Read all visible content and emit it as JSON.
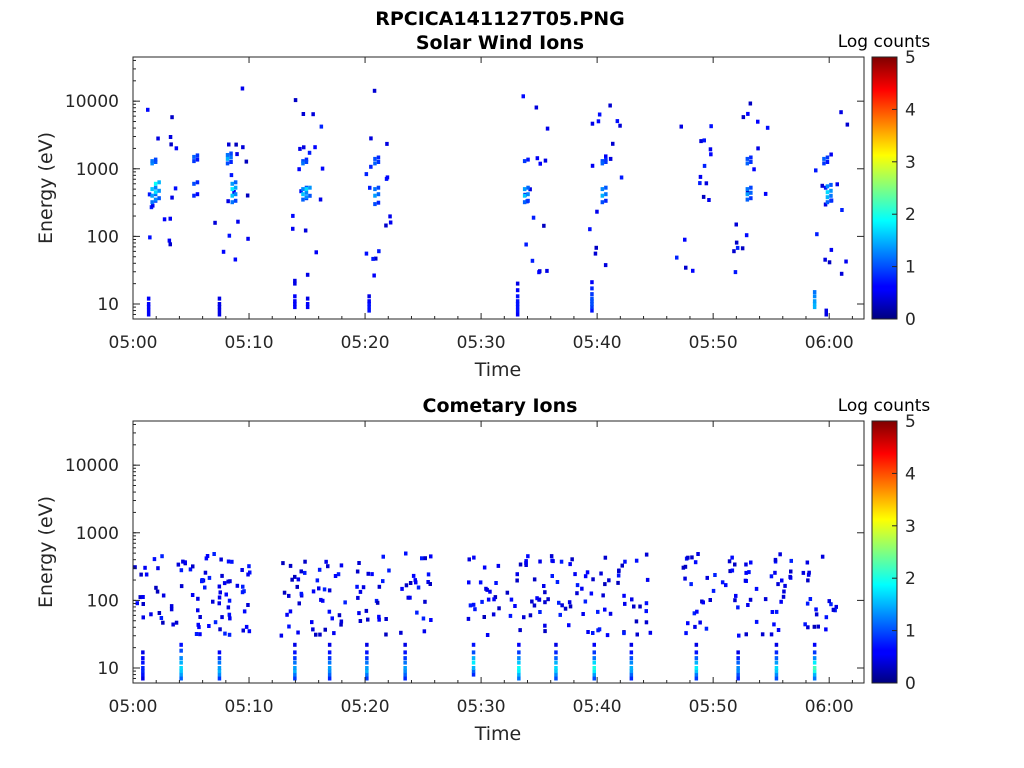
{
  "figure_title": "RPCICA141127T05.PNG",
  "colorbar": {
    "title": "Log counts",
    "ticks": [
      "0",
      "1",
      "2",
      "3",
      "4",
      "5"
    ],
    "range": [
      0,
      5
    ],
    "colormap": "jet"
  },
  "chart_data": [
    {
      "type": "heatmap",
      "title": "Solar Wind Ions",
      "xlabel": "Time",
      "ylabel": "Energy (eV)",
      "x_ticks": [
        "05:00",
        "05:10",
        "05:20",
        "05:30",
        "05:40",
        "05:50",
        "06:00"
      ],
      "y_ticks": [
        "10",
        "100",
        "1000",
        "10000"
      ],
      "y_scale": "log",
      "xlim_minutes": [
        0,
        63
      ],
      "ylim_eV": [
        6,
        45000
      ],
      "cell_minutes": 0.3,
      "bursts_minutes": [
        1.5,
        7.8,
        14.5,
        20.5,
        33.5,
        40,
        47.6,
        52.5,
        59.5
      ],
      "clusters": [
        {
          "t": 1.5,
          "E": [
            1200,
            1300,
            500,
            400,
            320
          ],
          "v": [
            1.3,
            1.2,
            1.6,
            1.4,
            1.2
          ]
        },
        {
          "t": 1.8,
          "E": [
            600,
            450,
            350
          ],
          "v": [
            1.9,
            1.7,
            1.3
          ]
        },
        {
          "t": 5.1,
          "E": [
            1500,
            1300,
            600,
            400
          ],
          "v": [
            1.1,
            0.9,
            1.0,
            0.8
          ]
        },
        {
          "t": 8.0,
          "E": [
            1600,
            1400,
            1200
          ],
          "v": [
            1.2,
            1.5,
            1.0
          ]
        },
        {
          "t": 8.4,
          "E": [
            600,
            500,
            400,
            320
          ],
          "v": [
            1.4,
            1.8,
            1.6,
            1.2
          ]
        },
        {
          "t": 14.5,
          "E": [
            1300,
            1200,
            500,
            420,
            350
          ],
          "v": [
            1.0,
            1.2,
            1.3,
            1.6,
            1.1
          ]
        },
        {
          "t": 14.8,
          "E": [
            500,
            380
          ],
          "v": [
            1.7,
            1.3
          ]
        },
        {
          "t": 20.7,
          "E": [
            1400,
            1200,
            500,
            400,
            300
          ],
          "v": [
            1.0,
            1.1,
            1.2,
            1.4,
            1.0
          ]
        },
        {
          "t": 33.6,
          "E": [
            1300,
            500,
            400,
            320
          ],
          "v": [
            0.9,
            1.4,
            1.6,
            1.1
          ]
        },
        {
          "t": 40.3,
          "E": [
            1300,
            1200,
            500,
            400,
            320
          ],
          "v": [
            1.0,
            1.1,
            1.3,
            1.5,
            1.0
          ]
        },
        {
          "t": 52.8,
          "E": [
            1400,
            1200,
            500,
            420,
            350
          ],
          "v": [
            1.0,
            1.1,
            1.2,
            1.4,
            1.1
          ]
        },
        {
          "t": 59.4,
          "E": [
            1400,
            1200
          ],
          "v": [
            1.1,
            0.9
          ]
        },
        {
          "t": 59.7,
          "E": [
            550,
            450,
            380,
            320
          ],
          "v": [
            1.3,
            1.7,
            1.5,
            1.1
          ]
        }
      ],
      "low_bars": [
        {
          "t": 1.2,
          "E": [
            7,
            8,
            9,
            10,
            12
          ],
          "v": [
            0.6,
            0.6,
            0.6,
            0.6,
            0.6
          ]
        },
        {
          "t": 7.3,
          "E": [
            7,
            8,
            9,
            10,
            12
          ],
          "v": [
            0.5,
            0.5,
            0.5,
            0.5,
            0.5
          ]
        },
        {
          "t": 13.8,
          "E": [
            9,
            10,
            11,
            13,
            20,
            22
          ],
          "v": [
            0.6,
            0.6,
            0.6,
            0.6,
            0.5,
            0.5
          ]
        },
        {
          "t": 14.9,
          "E": [
            9,
            10,
            12,
            27
          ],
          "v": [
            0.6,
            0.6,
            0.5,
            0.5
          ]
        },
        {
          "t": 20.2,
          "E": [
            8,
            9,
            10,
            11,
            13
          ],
          "v": [
            0.7,
            0.7,
            0.7,
            0.6,
            0.5
          ]
        },
        {
          "t": 33.0,
          "E": [
            7,
            8,
            9,
            10,
            11,
            13,
            16,
            20
          ],
          "v": [
            0.6,
            0.7,
            0.7,
            0.7,
            0.7,
            0.7,
            0.6,
            0.5
          ]
        },
        {
          "t": 39.4,
          "E": [
            8,
            9,
            10,
            11,
            12,
            14,
            17,
            21
          ],
          "v": [
            0.7,
            0.9,
            1.0,
            1.0,
            1.0,
            0.9,
            0.8,
            0.6
          ]
        },
        {
          "t": 58.6,
          "E": [
            9,
            10,
            11,
            13,
            15
          ],
          "v": [
            1.5,
            1.5,
            1.4,
            1.3,
            1.2
          ]
        },
        {
          "t": 59.6,
          "E": [
            7,
            8
          ],
          "v": [
            0.5,
            0.5
          ]
        }
      ]
    },
    {
      "type": "heatmap",
      "title": "Cometary Ions",
      "xlabel": "Time",
      "ylabel": "Energy (eV)",
      "x_ticks": [
        "05:00",
        "05:10",
        "05:20",
        "05:30",
        "05:40",
        "05:50",
        "06:00"
      ],
      "y_ticks": [
        "10",
        "100",
        "1000",
        "10000"
      ],
      "y_scale": "log",
      "xlim_minutes": [
        0,
        63
      ],
      "ylim_eV": [
        6,
        45000
      ],
      "cell_minutes": 0.3,
      "bursts_minutes": [
        0.5,
        4,
        6.3,
        8,
        13.5,
        16.5,
        20,
        23.5,
        29.5,
        33,
        36,
        39,
        42.5,
        48,
        51.5,
        55,
        58.5
      ],
      "low_bars": [
        {
          "t": 0.7,
          "E": [
            7,
            8,
            9,
            10,
            12,
            14,
            17
          ],
          "v": [
            0.5,
            0.7,
            0.8,
            0.8,
            0.7,
            0.6,
            0.5
          ]
        },
        {
          "t": 4.0,
          "E": [
            7,
            8,
            9,
            10,
            12,
            14,
            18,
            22
          ],
          "v": [
            1.1,
            1.4,
            1.6,
            1.7,
            1.5,
            1.3,
            1.0,
            0.7
          ]
        },
        {
          "t": 7.3,
          "E": [
            7,
            8,
            9,
            10,
            12,
            14,
            17
          ],
          "v": [
            0.9,
            1.3,
            1.5,
            1.4,
            1.2,
            0.9,
            0.6
          ]
        },
        {
          "t": 13.8,
          "E": [
            7,
            8,
            9,
            10,
            12,
            14,
            17,
            22
          ],
          "v": [
            0.9,
            1.2,
            1.5,
            1.4,
            1.2,
            0.9,
            0.7,
            0.5
          ]
        },
        {
          "t": 16.8,
          "E": [
            7,
            8,
            9,
            10,
            12,
            14,
            17,
            22
          ],
          "v": [
            0.8,
            1.1,
            1.3,
            1.4,
            1.2,
            0.9,
            0.7,
            0.5
          ]
        },
        {
          "t": 20.0,
          "E": [
            7,
            8,
            9,
            10,
            12,
            14,
            17,
            22
          ],
          "v": [
            0.9,
            1.2,
            1.5,
            1.4,
            1.2,
            0.9,
            0.7,
            0.5
          ]
        },
        {
          "t": 23.3,
          "E": [
            7,
            8,
            9,
            10,
            12,
            14,
            17,
            22
          ],
          "v": [
            0.8,
            1.1,
            1.3,
            1.4,
            1.2,
            0.9,
            0.7,
            0.5
          ]
        },
        {
          "t": 29.2,
          "E": [
            8,
            9,
            10,
            12,
            14,
            17,
            22
          ],
          "v": [
            0.8,
            1.1,
            1.5,
            1.8,
            1.5,
            1.0,
            0.7
          ]
        },
        {
          "t": 33.1,
          "E": [
            7,
            8,
            9,
            10,
            12,
            14,
            17,
            22
          ],
          "v": [
            1.2,
            1.5,
            1.8,
            1.9,
            1.6,
            1.3,
            0.9,
            0.6
          ]
        },
        {
          "t": 36.3,
          "E": [
            7,
            8,
            9,
            10,
            12,
            14,
            17,
            22
          ],
          "v": [
            1.0,
            1.3,
            1.6,
            1.7,
            1.5,
            1.1,
            0.8,
            0.5
          ]
        },
        {
          "t": 39.6,
          "E": [
            7,
            8,
            9,
            10,
            12,
            14,
            17,
            22
          ],
          "v": [
            1.0,
            1.4,
            1.8,
            2.0,
            1.7,
            1.2,
            0.9,
            0.6
          ]
        },
        {
          "t": 42.8,
          "E": [
            7,
            8,
            9,
            10,
            12,
            14,
            17,
            22
          ],
          "v": [
            0.8,
            1.1,
            1.4,
            1.5,
            1.3,
            1.0,
            0.7,
            0.5
          ]
        },
        {
          "t": 48.4,
          "E": [
            7,
            8,
            9,
            10,
            12,
            14,
            17,
            22
          ],
          "v": [
            0.9,
            1.2,
            1.6,
            1.8,
            1.5,
            1.1,
            0.7,
            0.5
          ]
        },
        {
          "t": 52.0,
          "E": [
            7,
            8,
            9,
            10,
            12,
            14,
            17
          ],
          "v": [
            0.8,
            1.0,
            1.3,
            1.3,
            1.1,
            0.8,
            0.5
          ]
        },
        {
          "t": 55.3,
          "E": [
            7,
            8,
            9,
            10,
            12,
            14,
            17,
            22
          ],
          "v": [
            1.0,
            1.3,
            1.6,
            1.7,
            1.4,
            1.1,
            0.8,
            0.5
          ]
        },
        {
          "t": 58.6,
          "E": [
            7,
            8,
            9,
            10,
            12,
            14,
            17,
            22
          ],
          "v": [
            1.2,
            1.5,
            2.0,
            2.2,
            1.8,
            1.3,
            0.9,
            0.6
          ]
        }
      ],
      "mid_band_eV": [
        30,
        500
      ]
    }
  ]
}
